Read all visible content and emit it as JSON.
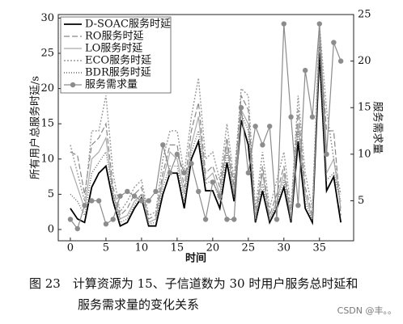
{
  "chart_data": {
    "type": "line",
    "xlabel": "时间",
    "ylabel": "所有用户总服务时延/s",
    "y2label": "服务需求量",
    "x": [
      0,
      1,
      2,
      3,
      4,
      5,
      6,
      7,
      8,
      9,
      10,
      11,
      12,
      13,
      14,
      15,
      16,
      17,
      18,
      19,
      20,
      21,
      22,
      23,
      24,
      25,
      26,
      27,
      28,
      29,
      30,
      31,
      32,
      33,
      34,
      35,
      36,
      37,
      38
    ],
    "xlim": [
      -1.7,
      39.8
    ],
    "xticks": [
      0,
      5,
      10,
      15,
      20,
      25,
      30,
      35
    ],
    "ylim": [
      -1.6,
      30.5
    ],
    "yticks": [
      0,
      5,
      10,
      15,
      20,
      25,
      30
    ],
    "y2lim": [
      0.7,
      25
    ],
    "y2ticks": [
      5,
      10,
      15,
      20,
      25
    ],
    "legend": "upper left",
    "series": [
      {
        "name": "D-SOAC服务时延",
        "color": "#000000",
        "dash": "none",
        "width": 1.8,
        "values": [
          3,
          1.5,
          1,
          6,
          8,
          9,
          4,
          0.5,
          1,
          3,
          4.5,
          0.5,
          0.5,
          5,
          8,
          8,
          3,
          10,
          12.5,
          5.5,
          5.5,
          3,
          9.5,
          4,
          15.5,
          12,
          1,
          5.5,
          1,
          3,
          6,
          1,
          12.5,
          3,
          1,
          25,
          5.5,
          7.5,
          1
        ]
      },
      {
        "name": "RO服务时延",
        "color": "#888888",
        "dash": "7 3",
        "width": 1.2,
        "values": [
          11,
          10.5,
          5,
          12,
          13,
          15,
          6,
          2,
          3,
          5,
          6,
          1.5,
          2,
          8,
          12,
          12,
          6,
          14,
          18,
          8,
          9,
          6,
          13,
          6,
          19,
          17,
          2,
          9,
          2,
          5,
          9,
          2,
          17,
          6,
          2,
          27,
          14,
          14,
          2
        ]
      },
      {
        "name": "LO服务时延",
        "color": "#aaaaaa",
        "dash": "none",
        "width": 1.2,
        "values": [
          9,
          6,
          3,
          10,
          11,
          13,
          5,
          1.5,
          2,
          4,
          5,
          1,
          1.5,
          7,
          11,
          10,
          5,
          12,
          16,
          7,
          8,
          5,
          12,
          5,
          17,
          15,
          1.5,
          8,
          1.5,
          4,
          8,
          1.5,
          15,
          5,
          1.5,
          28,
          8,
          10,
          3
        ]
      },
      {
        "name": "ECO服务时延",
        "color": "#999999",
        "dash": "2 2",
        "width": 1.4,
        "values": [
          12,
          8,
          4,
          14,
          14,
          19,
          8,
          2.5,
          4,
          6,
          7,
          2,
          2.5,
          10,
          14,
          14,
          8,
          16,
          21.5,
          10,
          11,
          7,
          15,
          7,
          20,
          19,
          3,
          11,
          3,
          7,
          11,
          3,
          19,
          8,
          3,
          29,
          17,
          10,
          5
        ]
      },
      {
        "name": "BDR服务时延",
        "color": "#666666",
        "dash": "1 2",
        "width": 1.4,
        "values": [
          5,
          4,
          2,
          8,
          9.5,
          11,
          5,
          1,
          1.5,
          3.5,
          5,
          0.8,
          1,
          6,
          9,
          9,
          4,
          11,
          14,
          6.5,
          7,
          4,
          11,
          4.5,
          16.5,
          14,
          1.2,
          6.5,
          1.2,
          3.5,
          7,
          1.2,
          14,
          4,
          1.2,
          26,
          7,
          8,
          4
        ]
      },
      {
        "name": "服务需求量",
        "color": "#8c8c8c",
        "dash": "none",
        "width": 1.2,
        "axis": "y2",
        "marker": "o",
        "values": [
          3,
          2,
          4.5,
          5,
          5,
          2.5,
          3,
          5.5,
          6,
          5.5,
          5,
          5,
          6,
          11,
          8,
          10,
          8,
          9,
          6,
          3,
          7,
          5.5,
          3,
          3,
          15,
          8,
          13,
          11,
          13,
          3,
          24,
          14,
          4.5,
          19,
          14,
          24,
          10,
          22,
          20
        ]
      }
    ]
  },
  "caption": [
    "图 23　计算资源为 15、子信道数为 30 时用户服务总时延和",
    "服务需求量的变化关系"
  ],
  "watermark": "CSDN @丰。。"
}
